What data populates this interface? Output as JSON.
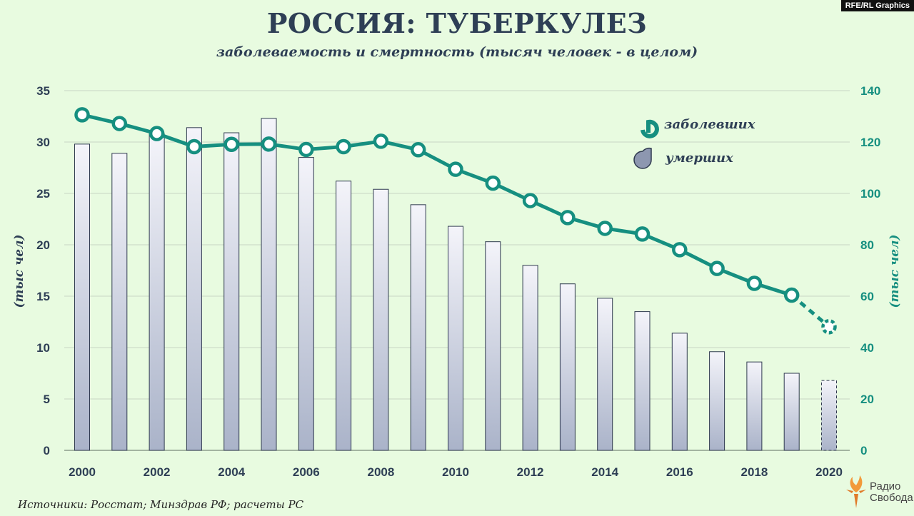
{
  "credit": "RFE/RL Graphics",
  "title": "РОССИЯ: ТУБЕРКУЛЕЗ",
  "subtitle": "заболеваемость и смертность (тысяч человек - в целом)",
  "source": "Источники: Росстат; Минздрав РФ; расчеты РС",
  "logo": {
    "line1": "Радио",
    "line2": "Свобода"
  },
  "colors": {
    "background": "#e8fbe0",
    "line": "#168f80",
    "bar_top": "#f4f4fa",
    "bar_bottom": "#aab3c9",
    "bar_stroke": "#2f3a4f",
    "axis_text": "#2e3f55",
    "right_axis_text": "#168f80"
  },
  "chart_data": {
    "type": "bar+line",
    "title": "РОССИЯ: ТУБЕРКУЛЕЗ",
    "subtitle": "заболеваемость и смертность (тысяч человек - в целом)",
    "categories": [
      2000,
      2001,
      2002,
      2003,
      2004,
      2005,
      2006,
      2007,
      2008,
      2009,
      2010,
      2011,
      2012,
      2013,
      2014,
      2015,
      2016,
      2017,
      2018,
      2019,
      2020
    ],
    "x_tick_labels": [
      "2000",
      "2002",
      "2004",
      "2006",
      "2008",
      "2010",
      "2012",
      "2014",
      "2016",
      "2018",
      "2020"
    ],
    "left_axis": {
      "label": "(тыс чел)",
      "ylim": [
        0,
        35
      ],
      "ticks": [
        "0",
        "5",
        "10",
        "15",
        "20",
        "25",
        "30",
        "35"
      ]
    },
    "right_axis": {
      "label": "(тыс чел)",
      "ylim": [
        0,
        140
      ],
      "ticks": [
        "0",
        "20",
        "40",
        "60",
        "80",
        "100",
        "120",
        "140"
      ]
    },
    "grid": true,
    "legend_position": "top-right",
    "series": [
      {
        "name": "заболевших",
        "type": "line",
        "axis": "right",
        "values": [
          130.6,
          127.2,
          123.3,
          118.2,
          119.1,
          119.2,
          117.1,
          118.2,
          120.3,
          117.0,
          109.4,
          104.0,
          97.2,
          90.6,
          86.4,
          84.2,
          78.1,
          70.8,
          65.0,
          60.4,
          48.1
        ],
        "estimated_from_index": 20
      },
      {
        "name": "умерших",
        "type": "bar",
        "axis": "left",
        "values": [
          29.8,
          28.9,
          30.8,
          31.4,
          30.9,
          32.3,
          28.5,
          26.2,
          25.4,
          23.9,
          21.8,
          20.3,
          18.0,
          16.2,
          14.8,
          13.5,
          11.4,
          9.6,
          8.6,
          7.5,
          6.8
        ],
        "estimated_from_index": 20
      }
    ]
  }
}
